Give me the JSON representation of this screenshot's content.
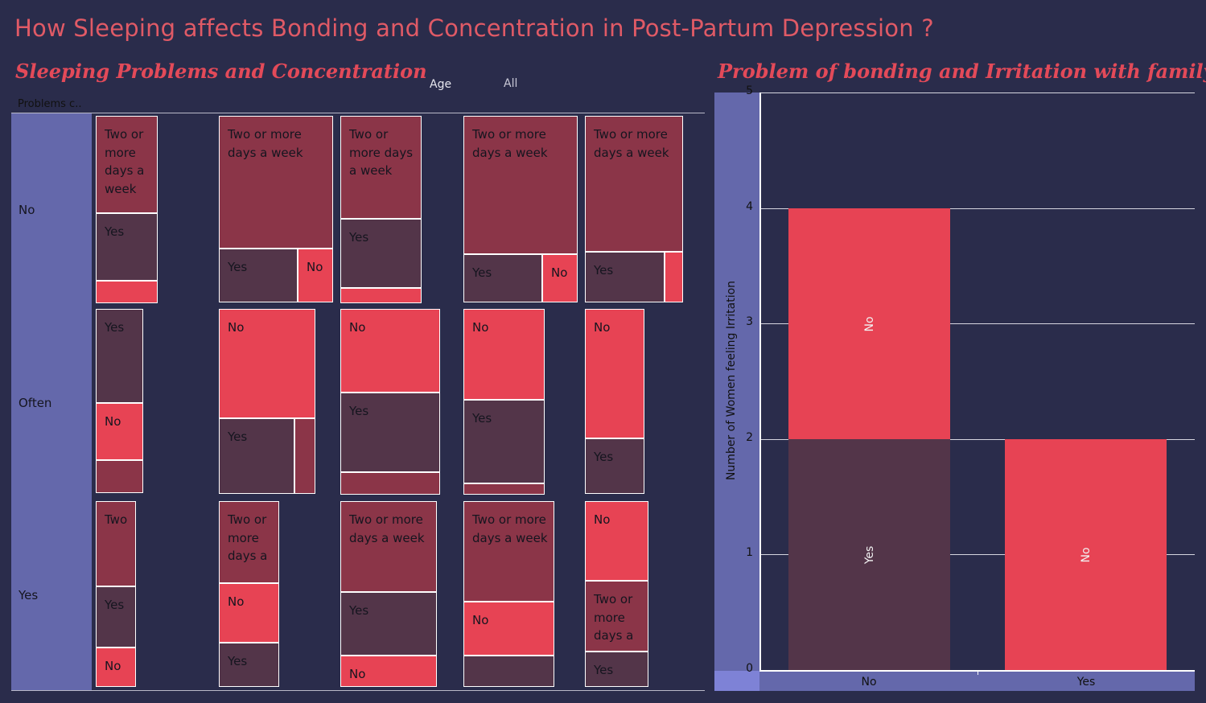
{
  "dashboard_title": "How Sleeping affects Bonding and Concentration in Post-Partum Depression ?",
  "filter": {
    "label": "Age",
    "value": "All"
  },
  "colors": {
    "background": "#2a2c4b",
    "header_panel": "#6468ab",
    "two_or_more_days": "#8b3548",
    "yes": "#533549",
    "no": "#e74354",
    "title": "#e34a59"
  },
  "chart_data": [
    {
      "type": "treemap",
      "title": "Sleeping Problems and Concentration",
      "rows_header": "Problems c..",
      "rows": [
        "No",
        "Often",
        "Yes"
      ],
      "legend": "none",
      "cells": [
        {
          "row": "No",
          "col": 1,
          "segments": [
            {
              "label": "Two or more days a week",
              "text": "Two or more days a week",
              "area": 0.52
            },
            {
              "label": "Yes",
              "text": "Yes",
              "area": 0.36
            },
            {
              "label": "No",
              "text": "",
              "area": 0.12
            }
          ]
        },
        {
          "row": "No",
          "col": 2,
          "segments": [
            {
              "label": "Two or more days a week",
              "text": "Two or more days a week",
              "area": 0.71
            },
            {
              "label": "Yes",
              "text": "Yes",
              "area": 0.2
            },
            {
              "label": "No",
              "text": "No",
              "area": 0.09
            }
          ]
        },
        {
          "row": "No",
          "col": 3,
          "segments": [
            {
              "label": "Two or more days a week",
              "text": "Two or more days a week",
              "area": 0.55
            },
            {
              "label": "Yes",
              "text": "Yes",
              "area": 0.37
            },
            {
              "label": "No",
              "text": "",
              "area": 0.08
            }
          ]
        },
        {
          "row": "No",
          "col": 4,
          "segments": [
            {
              "label": "Two or more days a week",
              "text": "Two or more days a week",
              "area": 0.74
            },
            {
              "label": "Yes",
              "text": "Yes",
              "area": 0.18
            },
            {
              "label": "No",
              "text": "No",
              "area": 0.08
            }
          ]
        },
        {
          "row": "No",
          "col": 5,
          "segments": [
            {
              "label": "Two or more days a week",
              "text": "Two or more days a week",
              "area": 0.73
            },
            {
              "label": "Yes",
              "text": "Yes",
              "area": 0.22
            },
            {
              "label": "No",
              "text": "",
              "area": 0.05
            }
          ]
        },
        {
          "row": "Often",
          "col": 1,
          "segments": [
            {
              "label": "Yes",
              "text": "Yes",
              "area": 0.51
            },
            {
              "label": "No",
              "text": "No",
              "area": 0.31
            },
            {
              "label": "Two or more days a week",
              "text": "",
              "area": 0.18
            }
          ]
        },
        {
          "row": "Often",
          "col": 2,
          "segments": [
            {
              "label": "No",
              "text": "No",
              "area": 0.59
            },
            {
              "label": "Yes",
              "text": "Yes",
              "area": 0.32
            },
            {
              "label": "Two or more days a week",
              "text": "",
              "area": 0.09
            }
          ]
        },
        {
          "row": "Often",
          "col": 3,
          "segments": [
            {
              "label": "No",
              "text": "No",
              "area": 0.45
            },
            {
              "label": "Yes",
              "text": "Yes",
              "area": 0.43
            },
            {
              "label": "Two or more days a week",
              "text": "",
              "area": 0.12
            }
          ]
        },
        {
          "row": "Often",
          "col": 4,
          "segments": [
            {
              "label": "No",
              "text": "No",
              "area": 0.49
            },
            {
              "label": "Yes",
              "text": "Yes",
              "area": 0.45
            },
            {
              "label": "Two or more days a week",
              "text": "",
              "area": 0.06
            }
          ]
        },
        {
          "row": "Often",
          "col": 5,
          "segments": [
            {
              "label": "No",
              "text": "No",
              "area": 0.7
            },
            {
              "label": "Yes",
              "text": "Yes",
              "area": 0.3
            }
          ]
        },
        {
          "row": "Yes",
          "col": 1,
          "segments": [
            {
              "label": "Two or more days a week",
              "text": "Two",
              "area": 0.46
            },
            {
              "label": "Yes",
              "text": "Yes",
              "area": 0.33
            },
            {
              "label": "No",
              "text": "No",
              "area": 0.21
            }
          ]
        },
        {
          "row": "Yes",
          "col": 2,
          "segments": [
            {
              "label": "Two or more days a week",
              "text": "Two or more days a",
              "area": 0.44
            },
            {
              "label": "No",
              "text": "No",
              "area": 0.32
            },
            {
              "label": "Yes",
              "text": "Yes",
              "area": 0.24
            }
          ]
        },
        {
          "row": "Yes",
          "col": 3,
          "segments": [
            {
              "label": "Two or more days a week",
              "text": "Two or more days a week",
              "area": 0.49
            },
            {
              "label": "Yes",
              "text": "Yes",
              "area": 0.34
            },
            {
              "label": "No",
              "text": "No",
              "area": 0.17
            }
          ]
        },
        {
          "row": "Yes",
          "col": 4,
          "segments": [
            {
              "label": "Two or more days a week",
              "text": "Two or more days a week",
              "area": 0.54
            },
            {
              "label": "No",
              "text": "No",
              "area": 0.29
            },
            {
              "label": "Yes",
              "text": "",
              "area": 0.17
            }
          ]
        },
        {
          "row": "Yes",
          "col": 5,
          "segments": [
            {
              "label": "No",
              "text": "No",
              "area": 0.43
            },
            {
              "label": "Two or more days a week",
              "text": "Two or more days a",
              "area": 0.38
            },
            {
              "label": "Yes",
              "text": "Yes",
              "area": 0.19
            }
          ]
        }
      ]
    },
    {
      "type": "bar",
      "stacked": true,
      "title": "Problem of bonding and Irritation with family",
      "ylabel": "Number of Women feeling Irritation",
      "xlabel": "",
      "categories": [
        "No",
        "Yes"
      ],
      "ylim": [
        0,
        5
      ],
      "yticks": [
        "0",
        "1",
        "2",
        "3",
        "4",
        "5"
      ],
      "grid": true,
      "legend": "none",
      "series": [
        {
          "name": "Yes",
          "label": "Yes",
          "values": [
            2,
            0
          ]
        },
        {
          "name": "No",
          "label": "No",
          "values": [
            2,
            2
          ]
        }
      ]
    }
  ]
}
